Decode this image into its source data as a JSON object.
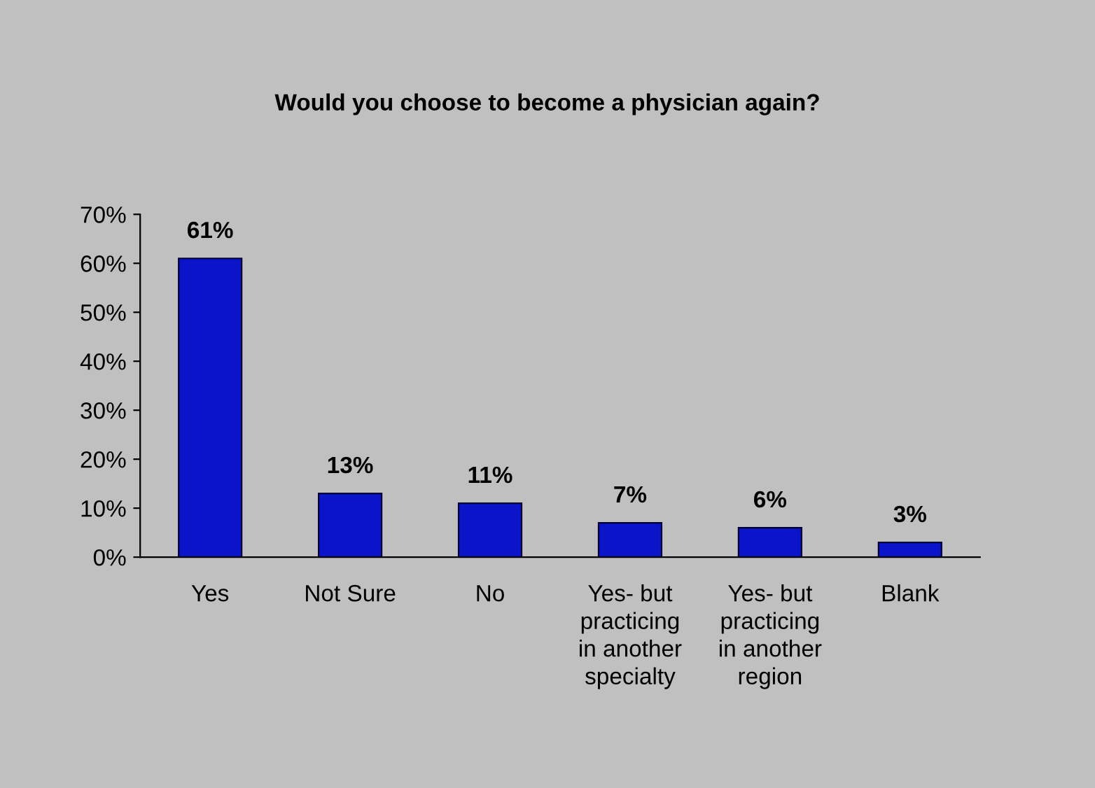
{
  "chart_data": {
    "type": "bar",
    "title": "Would you choose to become a physician again?",
    "categories": [
      "Yes",
      "Not Sure",
      "No",
      "Yes- but\npracticing\nin another\nspecialty",
      "Yes- but\npracticing\nin another\nregion",
      "Blank"
    ],
    "values": [
      61,
      13,
      11,
      7,
      6,
      3
    ],
    "value_labels": [
      "61%",
      "13%",
      "11%",
      "7%",
      "6%",
      "3%"
    ],
    "color": "#0a14c8",
    "ylim": [
      0,
      70
    ],
    "yticks": [
      {
        "value": 0,
        "label": "0%"
      },
      {
        "value": 10,
        "label": "10%"
      },
      {
        "value": 20,
        "label": "20%"
      },
      {
        "value": 30,
        "label": "30%"
      },
      {
        "value": 40,
        "label": "40%"
      },
      {
        "value": 50,
        "label": "50%"
      },
      {
        "value": 60,
        "label": "60%"
      },
      {
        "value": 70,
        "label": "70%"
      }
    ],
    "grid": false,
    "legend": false
  }
}
